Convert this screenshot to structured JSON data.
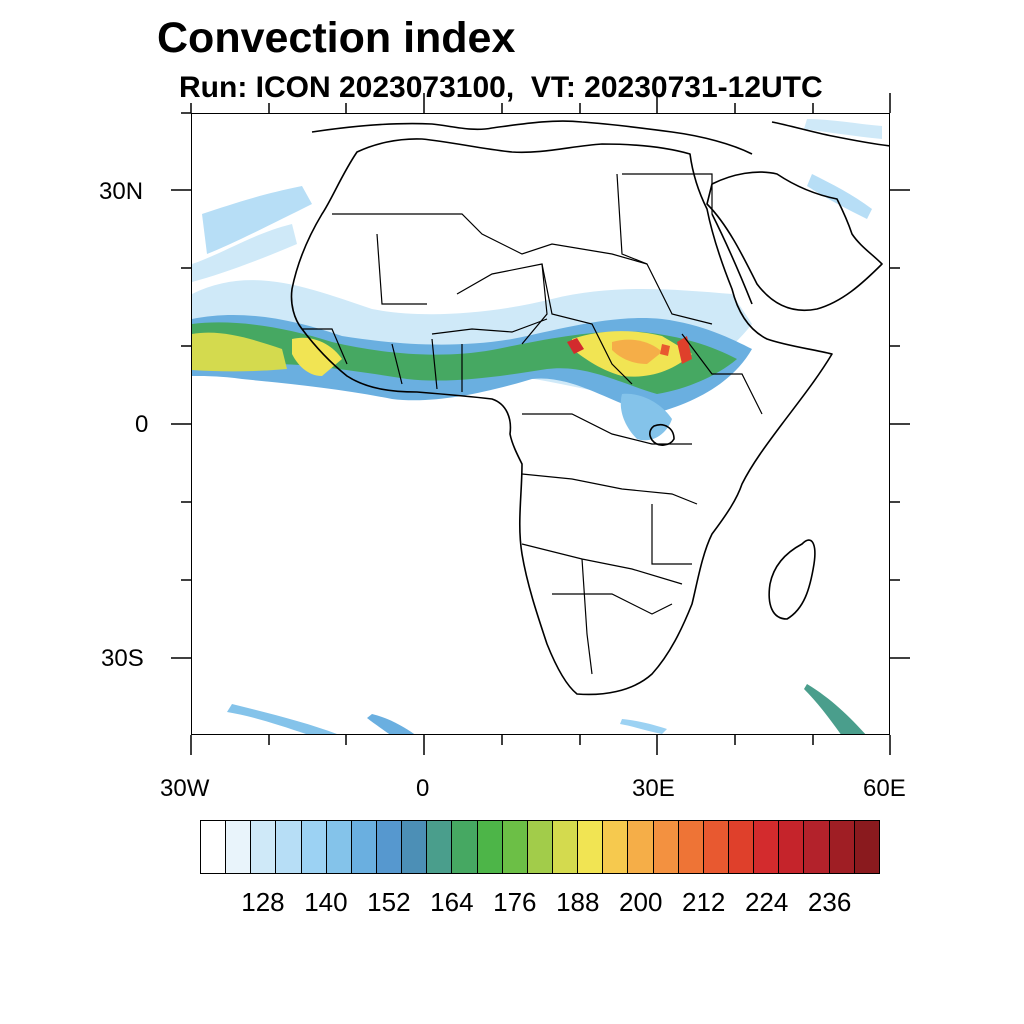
{
  "title": "Convection index",
  "subtitle": "Run: ICON 2023073100,  VT: 20230731-12UTC",
  "axes": {
    "lat_labels": [
      "30N",
      "0",
      "30S"
    ],
    "lon_labels": [
      "30W",
      "0",
      "30E",
      "60E"
    ]
  },
  "colorbar": {
    "colors": [
      "#ffffff",
      "#e9f4fb",
      "#cfe9f8",
      "#b7def6",
      "#9cd2f3",
      "#84c3ea",
      "#6aafe0",
      "#5698cf",
      "#4c8fb6",
      "#4a9e8c",
      "#46a862",
      "#4db548",
      "#6cbf46",
      "#a2cc4a",
      "#d4da4e",
      "#f1e453",
      "#f6c94e",
      "#f5ae48",
      "#f39140",
      "#ee7436",
      "#e85930",
      "#df402b",
      "#d32b2d",
      "#c5242b",
      "#b3222b",
      "#9f1e24",
      "#8a1a1e"
    ],
    "tick_labels": [
      "128",
      "140",
      "152",
      "164",
      "176",
      "188",
      "200",
      "212",
      "224",
      "236"
    ]
  }
}
